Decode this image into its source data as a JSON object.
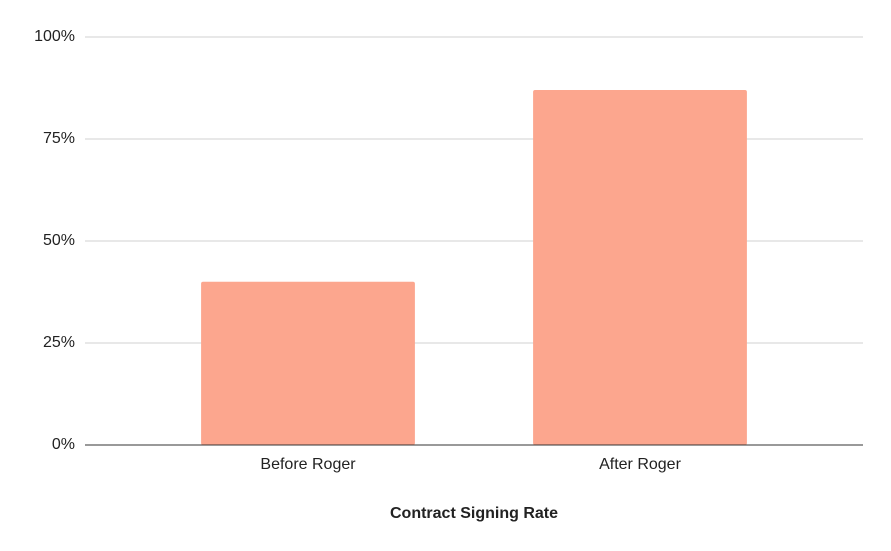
{
  "chart_data": {
    "type": "bar",
    "x_label": "Contract Signing Rate",
    "categories": [
      "Before Roger",
      "After Roger"
    ],
    "values": [
      40,
      87
    ],
    "color": "#fca68e",
    "ylim": [
      0,
      100
    ],
    "yticks": [
      {
        "value": 0,
        "label": "0%"
      },
      {
        "value": 25,
        "label": "25%"
      },
      {
        "value": 50,
        "label": "50%"
      },
      {
        "value": 75,
        "label": "75%"
      },
      {
        "value": 100,
        "label": "100%"
      }
    ],
    "grid": true
  }
}
